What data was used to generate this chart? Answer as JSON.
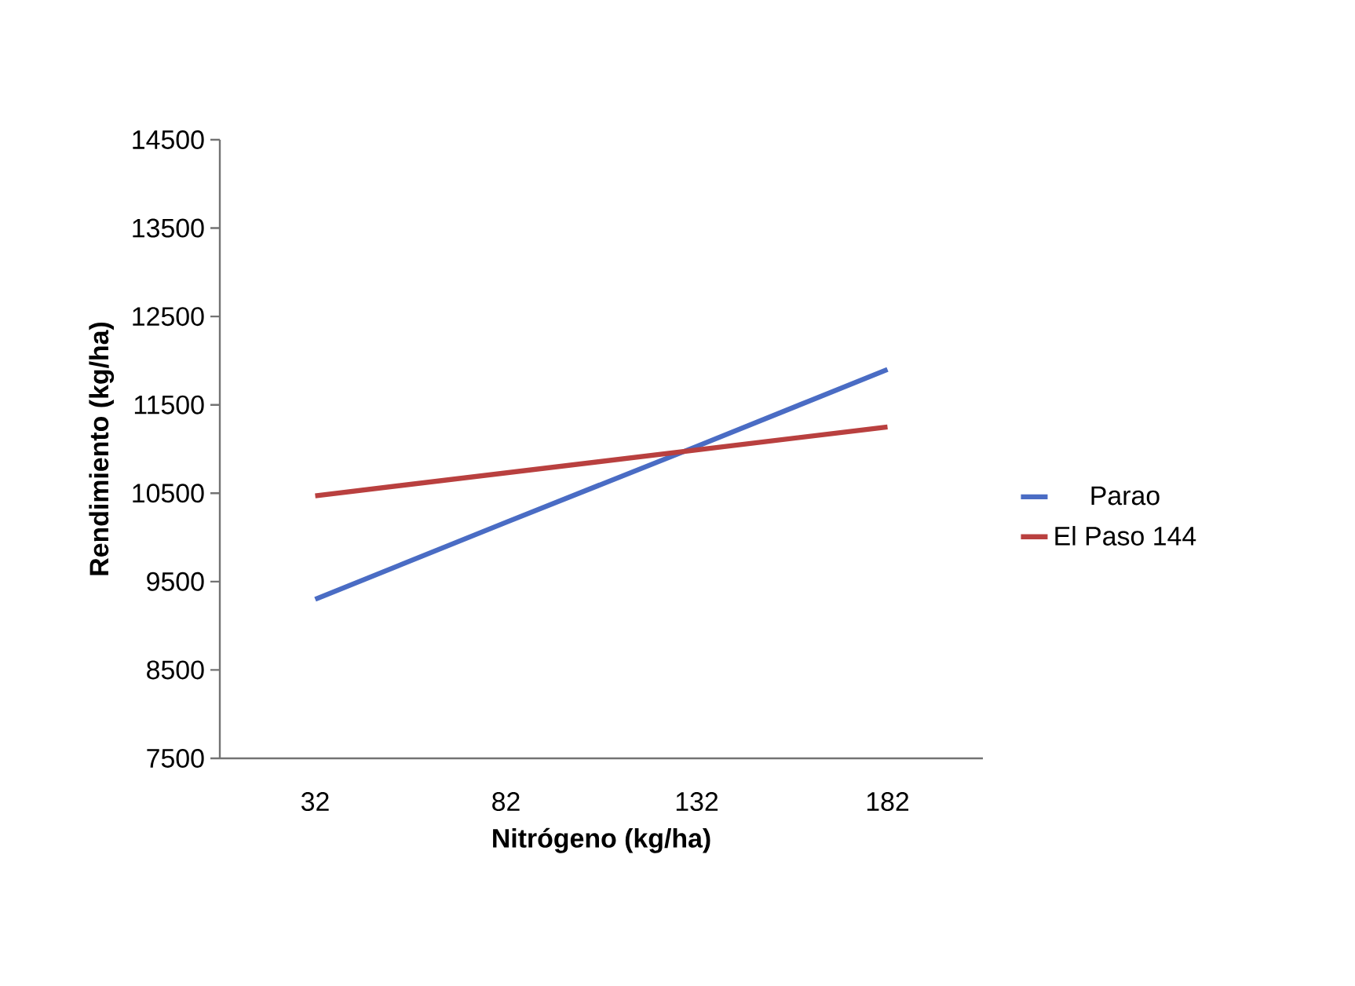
{
  "chart_data": {
    "type": "line",
    "xlabel": "Nitrógeno (kg/ha)",
    "ylabel": "Rendimiento (kg/ha)",
    "categories": [
      "32",
      "82",
      "132",
      "182"
    ],
    "series": [
      {
        "name": "Parao",
        "color": "#4a6cc4",
        "values": [
          9300,
          10170,
          11030,
          11900
        ]
      },
      {
        "name": "El Paso 144",
        "color": "#b9403f",
        "values": [
          10470,
          10730,
          10990,
          11250
        ]
      }
    ],
    "ylim": [
      7500,
      14500
    ],
    "yticks": [
      7500,
      8500,
      9500,
      10500,
      11500,
      12500,
      13500,
      14500
    ],
    "grid": false,
    "legend": "right",
    "marker": "none",
    "line_style": "solid"
  }
}
